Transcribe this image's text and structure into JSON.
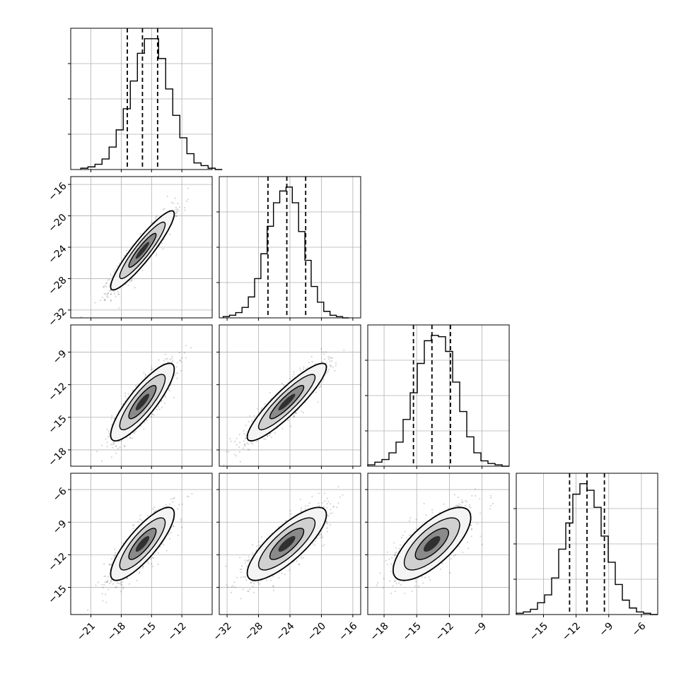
{
  "chart_data": {
    "type": "corner",
    "n_params": 4,
    "param_axes": [
      {
        "range": [
          -23,
          -9
        ],
        "ticks": [
          -21,
          -18,
          -15,
          -12
        ],
        "tick_labels": [
          "−21",
          "−18",
          "−15",
          "−12"
        ],
        "hist": {
          "edges_start": -22.0,
          "bin_width": 0.7,
          "counts": [
            1,
            2,
            4,
            8,
            17,
            30,
            46,
            67,
            88,
            99,
            99,
            84,
            61,
            41,
            24,
            12,
            5,
            3,
            1,
            0
          ],
          "quantiles": [
            -17.4,
            -15.9,
            -14.4
          ]
        }
      },
      {
        "range": [
          -33,
          -15
        ],
        "ticks": [
          -32,
          -28,
          -24,
          -20,
          -16
        ],
        "tick_labels": [
          "−32",
          "−28",
          "−24",
          "−20",
          "−16"
        ],
        "hist": {
          "edges_start": -32.5,
          "bin_width": 0.8,
          "counts": [
            1,
            2,
            4,
            8,
            16,
            30,
            49,
            70,
            88,
            97,
            100,
            88,
            66,
            44,
            24,
            12,
            5,
            2,
            1,
            0
          ],
          "quantiles": [
            -26.8,
            -24.4,
            -22.0
          ]
        }
      },
      {
        "range": [
          -19.5,
          -6.5
        ],
        "ticks": [
          -18,
          -15,
          -12,
          -9
        ],
        "tick_labels": [
          "−18",
          "−15",
          "−12",
          "−9"
        ],
        "hist": {
          "edges_start": -19.5,
          "bin_width": 0.65,
          "counts": [
            1,
            3,
            5,
            10,
            18,
            35,
            55,
            77,
            94,
            98,
            97,
            86,
            63,
            41,
            22,
            10,
            4,
            2,
            1,
            0
          ],
          "quantiles": [
            -15.3,
            -13.6,
            -11.9
          ]
        }
      },
      {
        "range": [
          -17.5,
          -4.5
        ],
        "ticks": [
          -15,
          -12,
          -9,
          -6
        ],
        "tick_labels": [
          "−15",
          "−12",
          "−9",
          "−6"
        ],
        "hist": {
          "edges_start": -17.5,
          "bin_width": 0.65,
          "counts": [
            1,
            2,
            4,
            9,
            15,
            28,
            50,
            70,
            92,
            100,
            95,
            82,
            60,
            40,
            23,
            11,
            5,
            2,
            1,
            0
          ],
          "quantiles": [
            -12.6,
            -11.0,
            -9.4
          ]
        }
      }
    ],
    "pairs": [
      {
        "row": 1,
        "col": 0,
        "mean_x": -15.9,
        "mean_y": -24.4,
        "sd_x": 1.5,
        "sd_y": 2.4,
        "corr": 0.92
      },
      {
        "row": 2,
        "col": 0,
        "mean_x": -15.9,
        "mean_y": -13.6,
        "sd_x": 1.5,
        "sd_y": 1.7,
        "corr": 0.85
      },
      {
        "row": 2,
        "col": 1,
        "mean_x": -24.4,
        "mean_y": -13.6,
        "sd_x": 2.4,
        "sd_y": 1.7,
        "corr": 0.9
      },
      {
        "row": 3,
        "col": 0,
        "mean_x": -15.9,
        "mean_y": -11.0,
        "sd_x": 1.5,
        "sd_y": 1.6,
        "corr": 0.82
      },
      {
        "row": 3,
        "col": 1,
        "mean_x": -24.4,
        "mean_y": -11.0,
        "sd_x": 2.4,
        "sd_y": 1.6,
        "corr": 0.8
      },
      {
        "row": 3,
        "col": 2,
        "mean_x": -13.6,
        "mean_y": -11.0,
        "sd_x": 1.7,
        "sd_y": 1.6,
        "corr": 0.72
      }
    ],
    "grid": true,
    "title": "",
    "xlabel": "",
    "ylabel": ""
  }
}
